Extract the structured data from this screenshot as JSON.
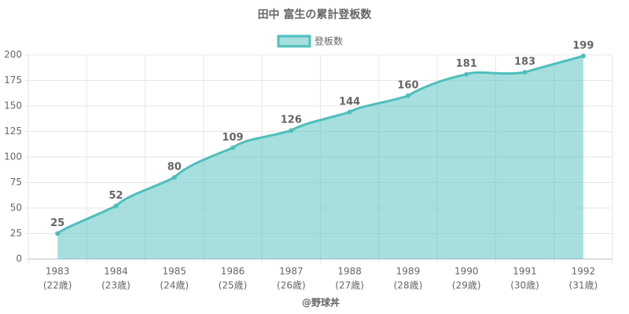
{
  "chart_data": {
    "type": "area",
    "title": "田中 富生の累計登板数",
    "x_label": "@野球丼",
    "categories": [
      "1983",
      "1984",
      "1985",
      "1986",
      "1987",
      "1988",
      "1989",
      "1990",
      "1991",
      "1992"
    ],
    "category_ages": [
      "(22歳)",
      "(23歳)",
      "(24歳)",
      "(25歳)",
      "(26歳)",
      "(27歳)",
      "(28歳)",
      "(29歳)",
      "(30歳)",
      "(31歳)"
    ],
    "series": [
      {
        "name": "登板数",
        "color": "#4dbfbd",
        "values": [
          25,
          52,
          80,
          109,
          126,
          144,
          160,
          181,
          183,
          199
        ]
      }
    ],
    "ylim": [
      0,
      200
    ],
    "yticks": [
      0,
      25,
      50,
      75,
      100,
      125,
      150,
      175,
      200
    ],
    "grid": true,
    "legend": "top"
  }
}
